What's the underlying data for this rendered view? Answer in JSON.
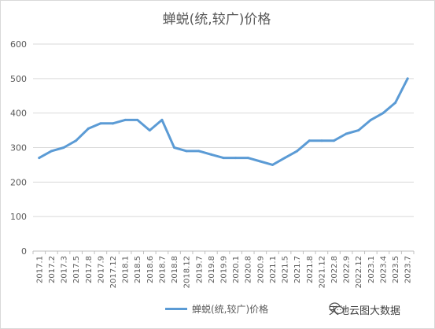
{
  "chart_data": {
    "type": "line",
    "title": "蝉蜕(统,较广)价格",
    "xlabel": "",
    "ylabel": "",
    "ylim": [
      0,
      600
    ],
    "yticks": [
      0,
      100,
      200,
      300,
      400,
      500,
      600
    ],
    "grid": true,
    "legend_position": "bottom",
    "categories": [
      "2017.1",
      "2017.2",
      "2017.3",
      "2017.5",
      "2017.8",
      "2017.9",
      "2017.12",
      "2018.1",
      "2018.5",
      "2018.6",
      "2018.7",
      "2018.8",
      "2018.12",
      "2019.7",
      "2019.8",
      "2019.9",
      "2020.1",
      "2020.8",
      "2020.9",
      "2021.1",
      "2021.5",
      "2021.7",
      "2021.8",
      "2021.12",
      "2022.8",
      "2022.9",
      "2022.12",
      "2023.1",
      "2023.4",
      "2023.5",
      "2023.7"
    ],
    "series": [
      {
        "name": "蝉蜕(统,较广)价格",
        "color": "#5b9bd5",
        "values": [
          270,
          290,
          300,
          320,
          355,
          370,
          370,
          380,
          380,
          350,
          380,
          300,
          290,
          290,
          280,
          270,
          270,
          270,
          260,
          250,
          270,
          290,
          320,
          320,
          320,
          340,
          350,
          380,
          400,
          430,
          500
        ]
      }
    ]
  },
  "watermark": {
    "text": "天地云图大数据",
    "icon": "wechat-icon"
  }
}
